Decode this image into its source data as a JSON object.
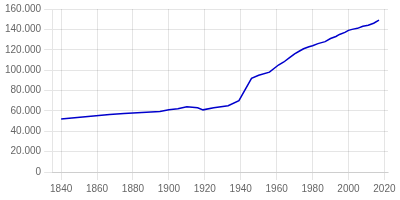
{
  "chart_data": {
    "type": "line",
    "x": [
      1840,
      1846,
      1852,
      1858,
      1864,
      1867,
      1871,
      1875,
      1880,
      1885,
      1890,
      1895,
      1900,
      1905,
      1910,
      1916,
      1919,
      1925,
      1933,
      1939,
      1946,
      1950,
      1956,
      1961,
      1964,
      1967,
      1970,
      1973,
      1975,
      1978,
      1980,
      1983,
      1985,
      1987,
      1990,
      1993,
      1995,
      1998,
      2000,
      2002,
      2005,
      2008,
      2011,
      2014,
      2017
    ],
    "values": [
      52000,
      53000,
      54000,
      55000,
      56000,
      56500,
      57000,
      57500,
      58000,
      58500,
      59000,
      59500,
      61000,
      62000,
      64000,
      63000,
      61000,
      63000,
      65000,
      70000,
      92000,
      95000,
      98000,
      105000,
      108000,
      112000,
      116000,
      119000,
      121000,
      123000,
      124000,
      126000,
      127000,
      128000,
      131000,
      133000,
      135000,
      137000,
      139000,
      140000,
      141000,
      143000,
      144000,
      146000,
      149000
    ],
    "color": "#0000cc",
    "xlim": [
      1835,
      2022
    ],
    "xticks": [
      1840,
      1860,
      1880,
      1900,
      1920,
      1940,
      1960,
      1980,
      2000,
      2020
    ],
    "ylim": [
      0,
      160000
    ],
    "yticks": [
      0,
      {
        "value": 20000,
        "label": "20.000"
      },
      {
        "value": 40000,
        "label": "40.000"
      },
      {
        "value": 60000,
        "label": "60.000"
      },
      {
        "value": 80000,
        "label": "80.000"
      },
      {
        "value": 100000,
        "label": "100.000"
      },
      {
        "value": 120000,
        "label": "120.000"
      },
      {
        "value": 140000,
        "label": "140.000"
      },
      {
        "value": 160000,
        "label": "160.000"
      }
    ],
    "grid": true
  }
}
